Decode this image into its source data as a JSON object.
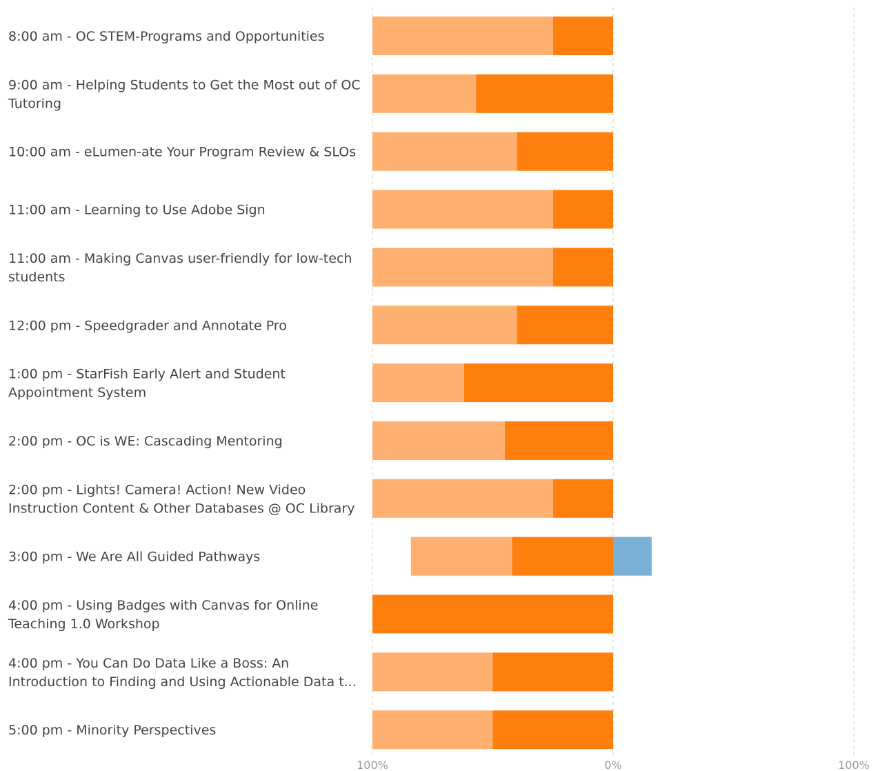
{
  "chart_data": {
    "type": "bar",
    "orientation": "horizontal",
    "stacked": "diverging",
    "categories": [
      [
        "8:00 am - OC STEM-Programs and Opportunities"
      ],
      [
        "9:00 am - Helping Students to Get the Most out of OC",
        "Tutoring"
      ],
      [
        "10:00 am - eLumen-ate Your Program Review & SLOs"
      ],
      [
        "11:00 am - Learning to Use Adobe Sign"
      ],
      [
        "11:00 am - Making Canvas user-friendly for low-tech",
        "students"
      ],
      [
        "12:00 pm - Speedgrader and Annotate Pro"
      ],
      [
        "1:00 pm - StarFish Early Alert and Student",
        "Appointment System"
      ],
      [
        "2:00 pm - OC is WE: Cascading Mentoring"
      ],
      [
        "2:00 pm - Lights! Camera! Action! New Video",
        "Instruction Content & Other Databases @ OC Library"
      ],
      [
        "3:00 pm - We Are All Guided Pathways"
      ],
      [
        "4:00 pm - Using Badges with Canvas for Online",
        "Teaching 1.0 Workshop"
      ],
      [
        "4:00 pm - You Can Do Data Like a Boss: An",
        "Introduction to Finding and Using Actionable Data t..."
      ],
      [
        "5:00 pm - Minority Perspectives"
      ]
    ],
    "series": [
      {
        "color": "#ff7f0e",
        "side": "negative",
        "values": [
          25,
          57,
          40,
          25,
          25,
          40,
          62,
          45,
          25,
          42,
          100,
          50,
          50
        ]
      },
      {
        "color": "#ffb070",
        "side": "negative",
        "values": [
          75,
          43,
          60,
          75,
          75,
          60,
          38,
          55,
          75,
          42,
          0,
          50,
          50
        ]
      },
      {
        "color": "#7aafd6",
        "side": "positive",
        "values": [
          0,
          0,
          0,
          0,
          0,
          0,
          0,
          0,
          0,
          16,
          0,
          0,
          0
        ]
      }
    ],
    "x_ticks": [
      "100%",
      "0%",
      "100%"
    ],
    "xlim": [
      -100,
      100
    ],
    "grid": true,
    "legend": "none"
  }
}
